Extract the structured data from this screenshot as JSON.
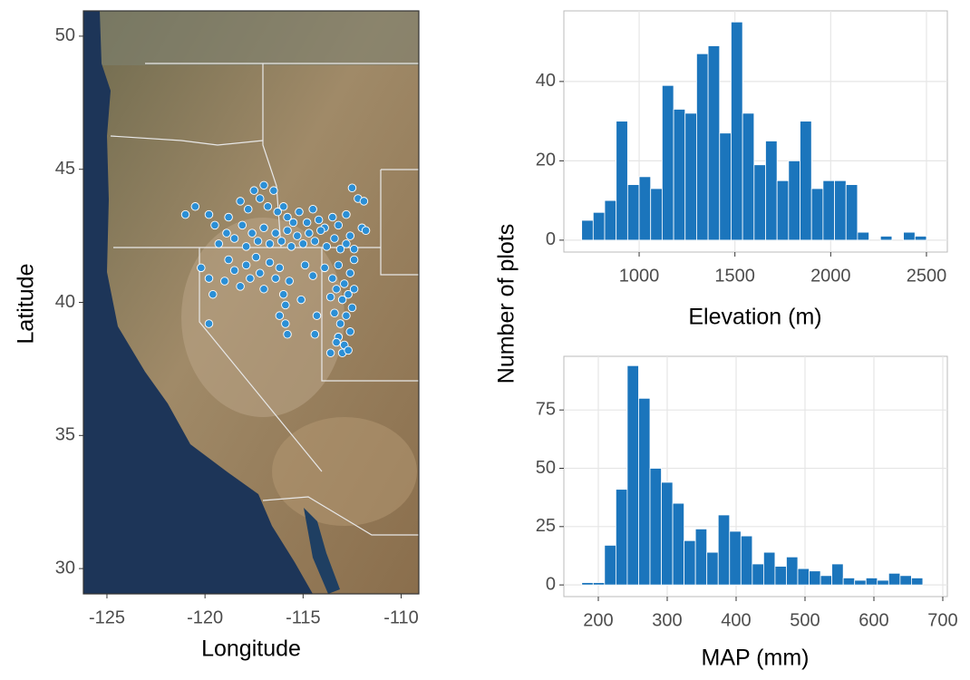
{
  "chart_data": [
    {
      "type": "scatter",
      "xlabel": "Longitude",
      "ylabel": "Latitude",
      "color": "#2b8fd6",
      "xlim": [
        -126.2,
        -109.1
      ],
      "ylim": [
        29.05,
        50.95
      ],
      "xticks": [
        -125,
        -120,
        -115,
        -110
      ],
      "yticks": [
        30,
        35,
        40,
        45,
        50
      ],
      "x": [
        -121,
        -120.5,
        -119.8,
        -119.5,
        -118.8,
        -118.2,
        -117.8,
        -117.5,
        -117.2,
        -117,
        -116.8,
        -116.5,
        -116.3,
        -116,
        -115.8,
        -115.5,
        -115.2,
        -114.8,
        -114.5,
        -114.2,
        -113.9,
        -113.5,
        -113.2,
        -112.8,
        -112.5,
        -112.2,
        -111.9,
        -112,
        -112.6,
        -111.8,
        -119.3,
        -118.9,
        -118.5,
        -118.1,
        -117.9,
        -117.6,
        -117.3,
        -117,
        -116.7,
        -116.4,
        -116.1,
        -115.8,
        -115.6,
        -115.3,
        -115,
        -114.7,
        -114.4,
        -114.1,
        -113.8,
        -113.4,
        -113.1,
        -112.8,
        -112.4,
        -120.2,
        -119.8,
        -119.6,
        -119,
        -118.8,
        -118.5,
        -118.2,
        -117.9,
        -117.7,
        -117.4,
        -117.2,
        -117,
        -116.7,
        -116.4,
        -116.2,
        -116,
        -115.7,
        -115.9,
        -116.2,
        -115.9,
        -115.8,
        -119.8,
        -114.9,
        -114.5,
        -115.1,
        -113.9,
        -113.5,
        -113.2,
        -112.9,
        -112.6,
        -113.6,
        -113.3,
        -113,
        -112.7,
        -112.5,
        -113.4,
        -113.1,
        -112.8,
        -112.6,
        -113.2,
        -112.9,
        -113,
        -112.7,
        -113.6,
        -113.3,
        -112.4,
        -112.4,
        -114.3,
        -114.4
      ],
      "values": [
        43.3,
        43.6,
        43.3,
        42.9,
        43.2,
        43.8,
        43.5,
        44.2,
        43.9,
        44.4,
        43.6,
        44.2,
        43.4,
        43.6,
        43.2,
        43,
        43.4,
        43,
        43.5,
        43.1,
        42.8,
        43.2,
        42.9,
        43.3,
        44.3,
        43.9,
        43.8,
        42.8,
        42.5,
        42.7,
        42.2,
        42.6,
        42.4,
        42.9,
        42.1,
        42.6,
        42.3,
        42.8,
        42.2,
        42.6,
        42.3,
        42.7,
        42.1,
        42.5,
        42.2,
        42.6,
        42.3,
        42.7,
        42.1,
        42.4,
        42,
        42.2,
        42,
        41.3,
        40.9,
        40.3,
        40.8,
        41.6,
        41.2,
        40.6,
        41.4,
        40.9,
        41.7,
        41.1,
        40.5,
        41.5,
        40.9,
        41.3,
        40.3,
        40.8,
        39.9,
        39.5,
        39.2,
        38.8,
        39.2,
        41.4,
        41,
        40.1,
        41.3,
        40.9,
        41.4,
        40.7,
        41.1,
        40.2,
        40.5,
        40.1,
        40.3,
        39.8,
        39.6,
        39.2,
        39.5,
        38.9,
        38.7,
        38.4,
        38.1,
        38.2,
        38.1,
        38.5,
        40.5,
        41.6,
        39.5,
        38.8
      ]
    },
    {
      "type": "histogram",
      "xlabel": "Elevation (m)",
      "ylabel": "Number of plots",
      "color": "#1b75bc",
      "grid": true,
      "xlim": [
        607,
        2609
      ],
      "ylim": [
        -3,
        57.8
      ],
      "xticks": [
        1000,
        1500,
        2000,
        2500
      ],
      "yticks": [
        0,
        20,
        40
      ],
      "bins": [
        700,
        760,
        820,
        880,
        940,
        1000,
        1060,
        1120,
        1180,
        1240,
        1300,
        1360,
        1420,
        1480,
        1540,
        1600,
        1660,
        1720,
        1780,
        1840,
        1900,
        1960,
        2020,
        2080,
        2140,
        2200,
        2260,
        2320,
        2380,
        2440,
        2500
      ],
      "values": [
        5,
        7,
        10,
        30,
        14,
        16,
        13,
        39,
        33,
        32,
        47,
        49,
        27,
        55,
        32,
        19,
        25,
        15,
        20,
        30,
        13,
        15,
        15,
        14,
        2,
        0,
        1,
        0,
        2,
        1
      ]
    },
    {
      "type": "histogram",
      "xlabel": "MAP (mm)",
      "color": "#1b75bc",
      "grid": true,
      "xlim": [
        150,
        706.6
      ],
      "ylim": [
        -5,
        98
      ],
      "xticks": [
        200,
        300,
        400,
        500,
        600,
        700
      ],
      "yticks": [
        0,
        25,
        50,
        75
      ],
      "bins": [
        176,
        192.5,
        209,
        225.5,
        242,
        258.5,
        275,
        291.5,
        308,
        324.5,
        341,
        357.5,
        374,
        390.5,
        407,
        423.5,
        440,
        456.5,
        473,
        489.5,
        506,
        522.5,
        539,
        555.5,
        572,
        588.5,
        605,
        621.5,
        638,
        654.5,
        671
      ],
      "values": [
        1,
        1,
        17,
        41,
        94,
        80,
        50,
        44,
        35,
        19,
        24,
        14,
        30,
        23,
        21,
        9,
        14,
        8,
        12,
        7,
        6,
        4,
        9,
        3,
        2,
        3,
        2,
        5,
        4,
        3
      ]
    }
  ]
}
